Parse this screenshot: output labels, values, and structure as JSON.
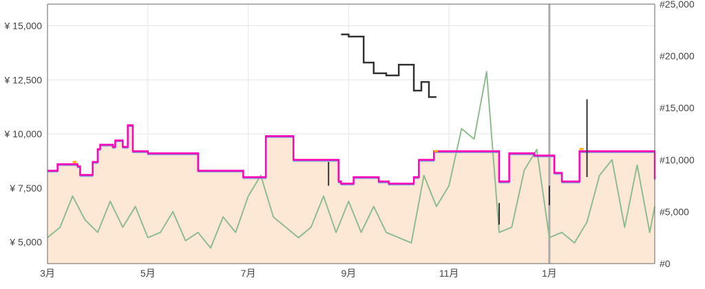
{
  "chart_data": {
    "type": "line",
    "title": "",
    "xlabel": "",
    "ylabel": "",
    "x_ticks": [
      "3月",
      "5月",
      "7月",
      "9月",
      "11月",
      "1月"
    ],
    "y_left_ticks": [
      "¥ 5,000",
      "¥ 7,500",
      "¥ 10,000",
      "¥ 12,500",
      "¥ 15,000"
    ],
    "y_right_ticks": [
      "#0",
      "#5,000",
      "#10,000",
      "#15,000",
      "#20,000",
      "#25,000"
    ],
    "ylim_left": [
      4000,
      16000
    ],
    "ylim_right": [
      0,
      25000
    ],
    "x_range_months": [
      0,
      12.1
    ],
    "grid": true,
    "colors": {
      "new_price": "#ff00b4",
      "amazon_price": "#8888d8",
      "amazon_fill": "#fde8d6",
      "used_price": "#333333",
      "third_party": "#ffa500",
      "sales_rank": "#8fbc8f",
      "marker_line": "#aaaaaa"
    },
    "series": [
      {
        "role": "new_price_axis_left",
        "x": [
          0,
          0.15,
          0.2,
          0.6,
          0.65,
          0.85,
          0.9,
          1.0,
          1.05,
          1.3,
          1.35,
          1.5,
          1.6,
          1.7,
          1.75,
          1.9,
          2.0,
          2.7,
          3.0,
          3.3,
          3.35,
          3.9,
          4.0,
          4.35,
          4.4,
          4.6,
          4.9,
          5.0,
          5.3,
          5.8,
          5.85,
          6.1,
          6.3,
          6.6,
          6.8,
          7.2,
          7.3,
          7.4,
          7.55,
          7.7,
          8.3,
          8.4,
          8.6,
          9.0,
          9.2,
          9.35,
          9.7,
          10.0,
          10.1,
          10.25,
          10.3,
          10.5,
          10.6,
          11.0,
          11.05,
          11.3,
          11.4,
          12.1
        ],
        "y": [
          8300,
          8300,
          8600,
          8500,
          8100,
          8100,
          8700,
          9300,
          9500,
          9400,
          9700,
          9400,
          10400,
          9200,
          9200,
          9200,
          9100,
          9100,
          8300,
          8300,
          8300,
          8000,
          8000,
          9900,
          9900,
          9900,
          8800,
          8800,
          8800,
          7800,
          7700,
          8000,
          8000,
          7800,
          7700,
          7700,
          8000,
          8800,
          8800,
          9200,
          9200,
          9200,
          9200,
          7800,
          9100,
          9100,
          9000,
          9000,
          8200,
          7800,
          7800,
          7800,
          9200,
          9200,
          9200,
          9200,
          9200,
          7900
        ]
      },
      {
        "role": "used_price_axis_left",
        "x": [
          5.85,
          6.0,
          6.0,
          6.3,
          6.3,
          6.5,
          6.5,
          6.75,
          6.75,
          7.0,
          7.0,
          7.3,
          7.3,
          7.45,
          7.45,
          7.6,
          7.6,
          7.75
        ],
        "y": [
          14600,
          14600,
          14500,
          14500,
          13300,
          13300,
          12800,
          12800,
          12700,
          12700,
          13200,
          13200,
          12000,
          12000,
          12400,
          12400,
          11700,
          11700
        ]
      },
      {
        "role": "sales_rank_axis_right",
        "x": [
          0,
          0.25,
          0.5,
          0.75,
          1.0,
          1.25,
          1.5,
          1.75,
          2.0,
          2.25,
          2.5,
          2.75,
          3.0,
          3.25,
          3.5,
          3.75,
          4.0,
          4.25,
          4.5,
          4.75,
          5.0,
          5.25,
          5.5,
          5.75,
          6.0,
          6.25,
          6.5,
          6.75,
          7.0,
          7.25,
          7.5,
          7.75,
          8.0,
          8.25,
          8.5,
          8.75,
          9.0,
          9.25,
          9.5,
          9.75,
          10.0,
          10.25,
          10.5,
          10.75,
          11.0,
          11.25,
          11.5,
          11.75,
          12.0,
          12.1
        ],
        "y": [
          2500,
          3500,
          6500,
          4200,
          3000,
          6000,
          3500,
          5500,
          2500,
          3000,
          5000,
          2200,
          3000,
          1500,
          4500,
          3000,
          6500,
          8500,
          4500,
          3500,
          2500,
          3500,
          6500,
          3000,
          6000,
          3000,
          5500,
          3000,
          2500,
          2000,
          8500,
          5500,
          7500,
          13000,
          12000,
          18500,
          3000,
          3500,
          9000,
          11000,
          2500,
          3000,
          2000,
          4000,
          8500,
          10000,
          3500,
          9500,
          3000,
          5500
        ]
      }
    ]
  }
}
